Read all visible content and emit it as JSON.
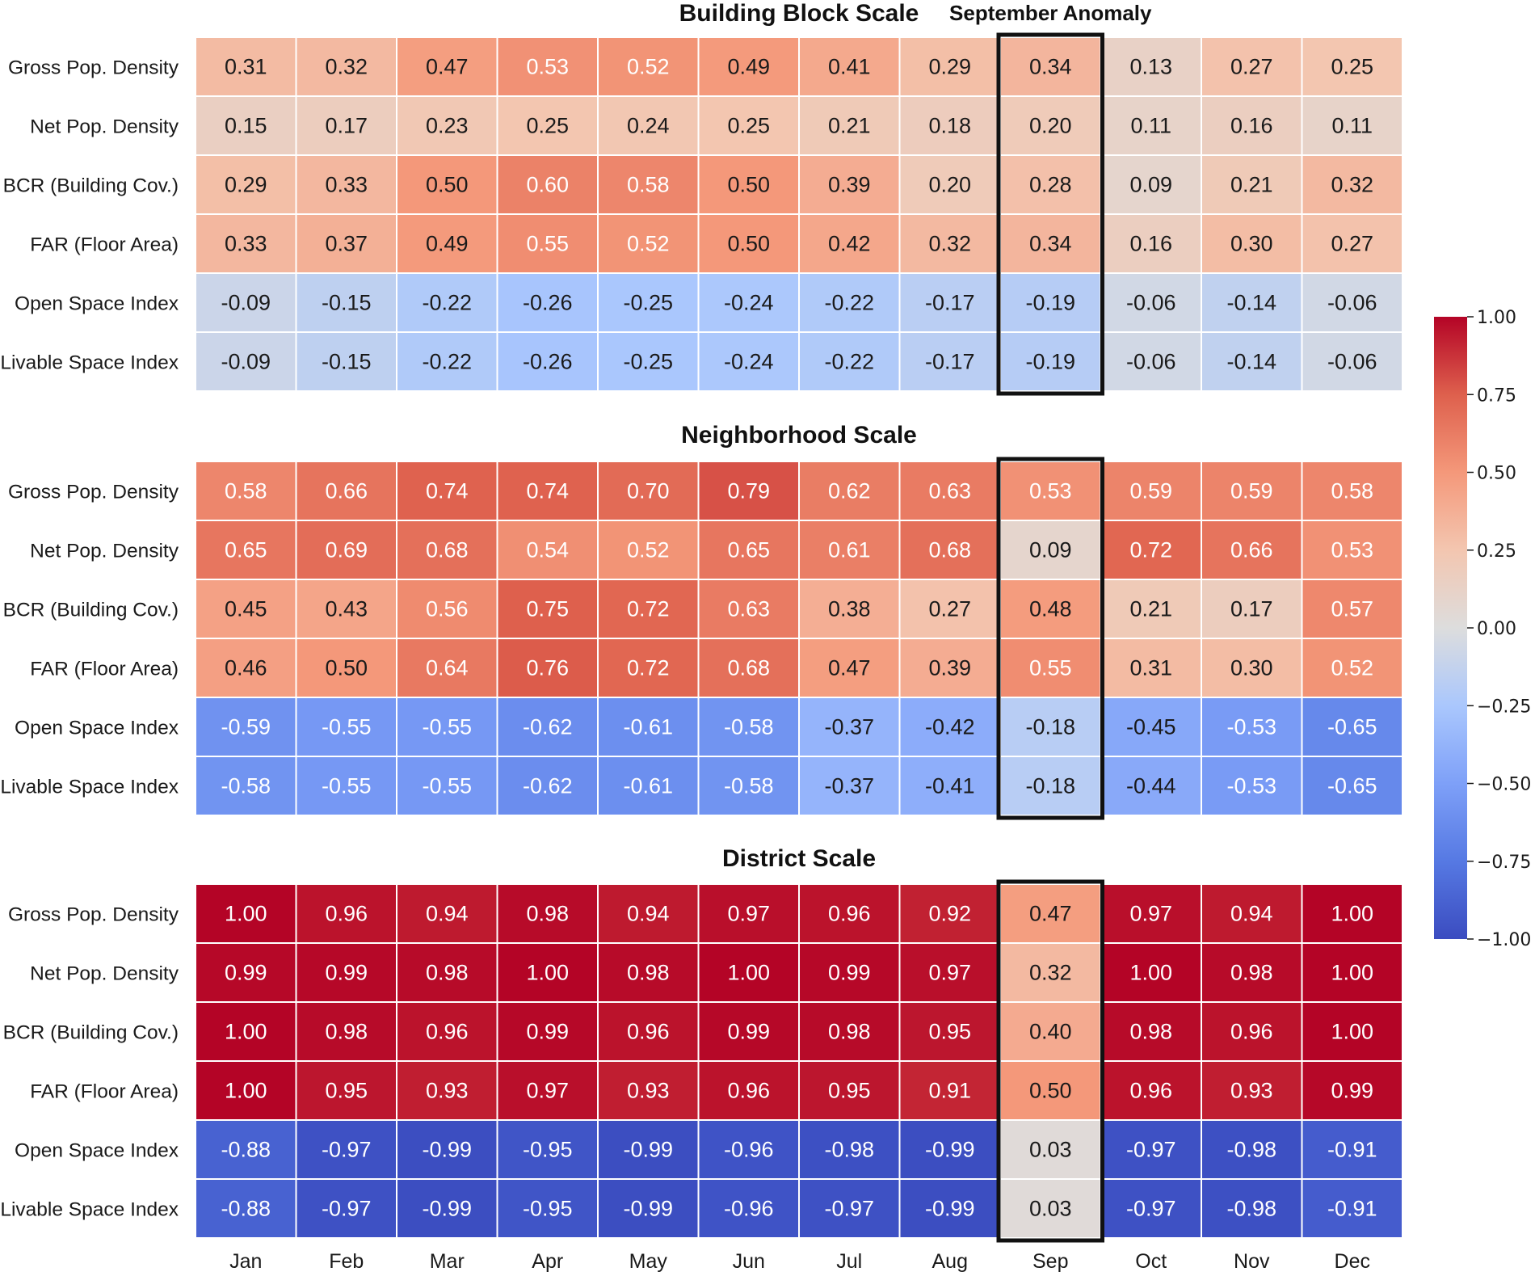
{
  "chart_data": {
    "type": "heatmap",
    "months": [
      "Jan",
      "Feb",
      "Mar",
      "Apr",
      "May",
      "Jun",
      "Jul",
      "Aug",
      "Sep",
      "Oct",
      "Nov",
      "Dec"
    ],
    "variables": [
      "Gross Pop. Density",
      "Net Pop. Density",
      "BCR (Building Cov.)",
      "FAR (Floor Area)",
      "Open Space Index",
      "Livable Space Index"
    ],
    "colormap": "coolwarm",
    "value_range": [
      -1.0,
      1.0
    ],
    "colorbar_ticks": [
      "1.00",
      "0.75",
      "0.50",
      "0.25",
      "0.00",
      "−0.25",
      "−0.50",
      "−0.75",
      "−1.00"
    ],
    "highlight": {
      "column": "Sep",
      "label": "September Anomaly"
    },
    "panels": [
      {
        "title": "Building Block Scale",
        "values": [
          [
            "0.31",
            "0.32",
            "0.47",
            "0.53",
            "0.52",
            "0.49",
            "0.41",
            "0.29",
            "0.34",
            "0.13",
            "0.27",
            "0.25"
          ],
          [
            "0.15",
            "0.17",
            "0.23",
            "0.25",
            "0.24",
            "0.25",
            "0.21",
            "0.18",
            "0.20",
            "0.11",
            "0.16",
            "0.11"
          ],
          [
            "0.29",
            "0.33",
            "0.50",
            "0.60",
            "0.58",
            "0.50",
            "0.39",
            "0.20",
            "0.28",
            "0.09",
            "0.21",
            "0.32"
          ],
          [
            "0.33",
            "0.37",
            "0.49",
            "0.55",
            "0.52",
            "0.50",
            "0.42",
            "0.32",
            "0.34",
            "0.16",
            "0.30",
            "0.27"
          ],
          [
            "-0.09",
            "-0.15",
            "-0.22",
            "-0.26",
            "-0.25",
            "-0.24",
            "-0.22",
            "-0.17",
            "-0.19",
            "-0.06",
            "-0.14",
            "-0.06"
          ],
          [
            "-0.09",
            "-0.15",
            "-0.22",
            "-0.26",
            "-0.25",
            "-0.24",
            "-0.22",
            "-0.17",
            "-0.19",
            "-0.06",
            "-0.14",
            "-0.06"
          ]
        ]
      },
      {
        "title": "Neighborhood Scale",
        "values": [
          [
            "0.58",
            "0.66",
            "0.74",
            "0.74",
            "0.70",
            "0.79",
            "0.62",
            "0.63",
            "0.53",
            "0.59",
            "0.59",
            "0.58"
          ],
          [
            "0.65",
            "0.69",
            "0.68",
            "0.54",
            "0.52",
            "0.65",
            "0.61",
            "0.68",
            "0.09",
            "0.72",
            "0.66",
            "0.53"
          ],
          [
            "0.45",
            "0.43",
            "0.56",
            "0.75",
            "0.72",
            "0.63",
            "0.38",
            "0.27",
            "0.48",
            "0.21",
            "0.17",
            "0.57"
          ],
          [
            "0.46",
            "0.50",
            "0.64",
            "0.76",
            "0.72",
            "0.68",
            "0.47",
            "0.39",
            "0.55",
            "0.31",
            "0.30",
            "0.52"
          ],
          [
            "-0.59",
            "-0.55",
            "-0.55",
            "-0.62",
            "-0.61",
            "-0.58",
            "-0.37",
            "-0.42",
            "-0.18",
            "-0.45",
            "-0.53",
            "-0.65"
          ],
          [
            "-0.58",
            "-0.55",
            "-0.55",
            "-0.62",
            "-0.61",
            "-0.58",
            "-0.37",
            "-0.41",
            "-0.18",
            "-0.44",
            "-0.53",
            "-0.65"
          ]
        ]
      },
      {
        "title": "District Scale",
        "values": [
          [
            "1.00",
            "0.96",
            "0.94",
            "0.98",
            "0.94",
            "0.97",
            "0.96",
            "0.92",
            "0.47",
            "0.97",
            "0.94",
            "1.00"
          ],
          [
            "0.99",
            "0.99",
            "0.98",
            "1.00",
            "0.98",
            "1.00",
            "0.99",
            "0.97",
            "0.32",
            "1.00",
            "0.98",
            "1.00"
          ],
          [
            "1.00",
            "0.98",
            "0.96",
            "0.99",
            "0.96",
            "0.99",
            "0.98",
            "0.95",
            "0.40",
            "0.98",
            "0.96",
            "1.00"
          ],
          [
            "1.00",
            "0.95",
            "0.93",
            "0.97",
            "0.93",
            "0.96",
            "0.95",
            "0.91",
            "0.50",
            "0.96",
            "0.93",
            "0.99"
          ],
          [
            "-0.88",
            "-0.97",
            "-0.99",
            "-0.95",
            "-0.99",
            "-0.96",
            "-0.98",
            "-0.99",
            "0.03",
            "-0.97",
            "-0.98",
            "-0.91"
          ],
          [
            "-0.88",
            "-0.97",
            "-0.99",
            "-0.95",
            "-0.99",
            "-0.96",
            "-0.97",
            "-0.99",
            "0.03",
            "-0.97",
            "-0.98",
            "-0.91"
          ]
        ]
      }
    ]
  }
}
